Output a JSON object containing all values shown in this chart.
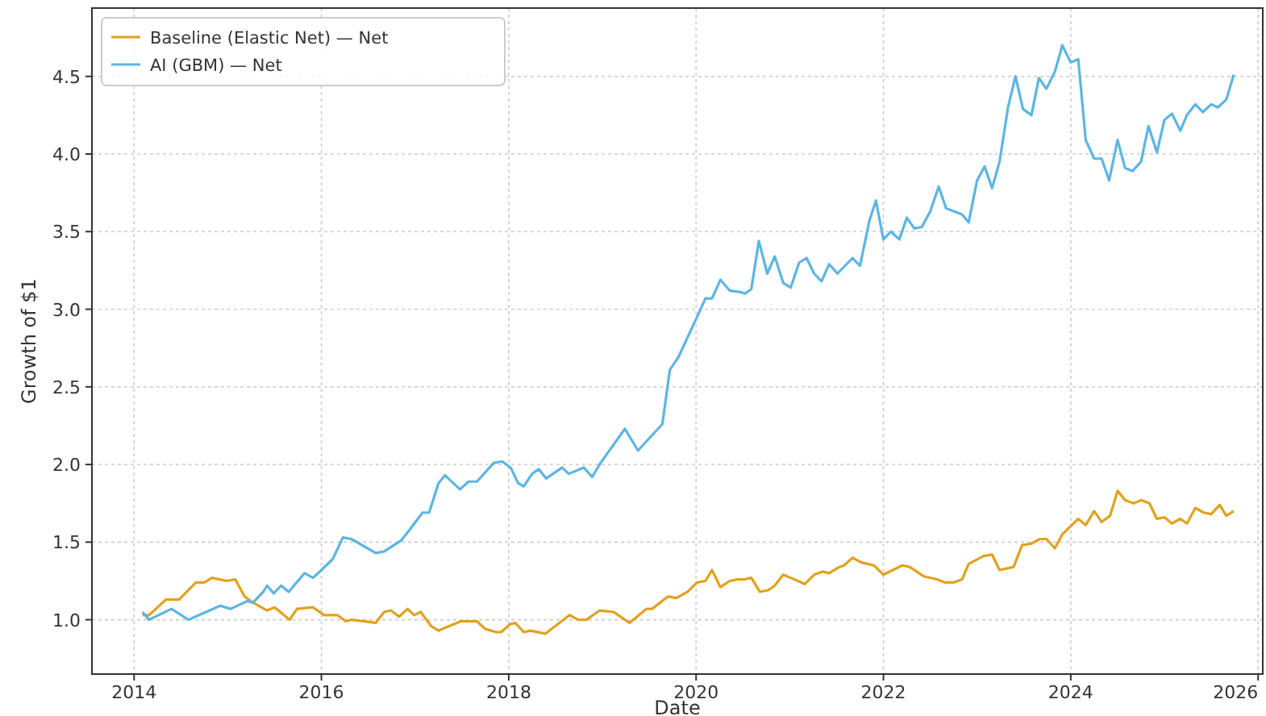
{
  "chart_data": {
    "type": "line",
    "xlabel": "Date",
    "ylabel": "Growth of $1",
    "xlim": [
      2013.55,
      2026.05
    ],
    "ylim": [
      0.65,
      4.94
    ],
    "xticks": [
      2014,
      2016,
      2018,
      2020,
      2022,
      2024,
      2026
    ],
    "yticks": [
      {
        "value": 1,
        "label": "1.0"
      },
      {
        "value": 1.5,
        "label": "1.5"
      },
      {
        "value": 2,
        "label": "2.0"
      },
      {
        "value": 2.5,
        "label": "2.5"
      },
      {
        "value": 3,
        "label": "3.0"
      },
      {
        "value": 3.5,
        "label": "3.5"
      },
      {
        "value": 4,
        "label": "4.0"
      },
      {
        "value": 4.5,
        "label": "4.5"
      }
    ],
    "grid": true,
    "legend": "top left",
    "marker": "none",
    "line_style": "solid",
    "series": [
      {
        "name": "Baseline (Elastic Net) — Net",
        "color": "#e0a21e",
        "x": [
          2014.09,
          2014.16,
          2014.34,
          2014.48,
          2014.66,
          2014.75,
          2014.83,
          2014.99,
          2015.08,
          2015.18,
          2015.27,
          2015.42,
          2015.5,
          2015.66,
          2015.74,
          2015.91,
          2016.03,
          2016.17,
          2016.26,
          2016.32,
          2016.58,
          2016.67,
          2016.74,
          2016.83,
          2016.92,
          2016.99,
          2017.06,
          2017.17,
          2017.25,
          2017.49,
          2017.66,
          2017.75,
          2017.87,
          2017.92,
          2018.01,
          2018.07,
          2018.16,
          2018.23,
          2018.39,
          2018.65,
          2018.74,
          2018.83,
          2018.97,
          2019.12,
          2019.29,
          2019.47,
          2019.53,
          2019.7,
          2019.79,
          2019.91,
          2020.01,
          2020.1,
          2020.17,
          2020.26,
          2020.36,
          2020.45,
          2020.52,
          2020.59,
          2020.68,
          2020.77,
          2020.84,
          2020.93,
          2021.01,
          2021.16,
          2021.26,
          2021.35,
          2021.42,
          2021.53,
          2021.58,
          2021.67,
          2021.76,
          2021.9,
          2022.0,
          2022.1,
          2022.2,
          2022.28,
          2022.43,
          2022.57,
          2022.66,
          2022.75,
          2022.84,
          2022.91,
          2023.07,
          2023.16,
          2023.24,
          2023.39,
          2023.48,
          2023.58,
          2023.67,
          2023.74,
          2023.83,
          2023.91,
          2024.08,
          2024.16,
          2024.25,
          2024.33,
          2024.42,
          2024.5,
          2024.58,
          2024.67,
          2024.75,
          2024.84,
          2024.92,
          2025.0,
          2025.08,
          2025.17,
          2025.24,
          2025.33,
          2025.42,
          2025.5,
          2025.59,
          2025.66,
          2025.74
        ],
        "values": [
          1.03,
          1.03,
          1.13,
          1.13,
          1.24,
          1.24,
          1.27,
          1.25,
          1.26,
          1.15,
          1.11,
          1.06,
          1.08,
          1.0,
          1.07,
          1.08,
          1.03,
          1.03,
          0.99,
          1.0,
          0.98,
          1.05,
          1.06,
          1.02,
          1.07,
          1.03,
          1.05,
          0.96,
          0.93,
          0.99,
          0.99,
          0.94,
          0.92,
          0.92,
          0.97,
          0.98,
          0.92,
          0.93,
          0.91,
          1.03,
          1.0,
          1.0,
          1.06,
          1.05,
          0.98,
          1.07,
          1.07,
          1.15,
          1.14,
          1.18,
          1.24,
          1.25,
          1.32,
          1.21,
          1.25,
          1.26,
          1.26,
          1.27,
          1.18,
          1.19,
          1.22,
          1.29,
          1.27,
          1.23,
          1.29,
          1.31,
          1.3,
          1.34,
          1.35,
          1.4,
          1.37,
          1.35,
          1.29,
          1.32,
          1.35,
          1.34,
          1.28,
          1.26,
          1.24,
          1.24,
          1.26,
          1.36,
          1.41,
          1.42,
          1.32,
          1.34,
          1.48,
          1.49,
          1.52,
          1.52,
          1.46,
          1.55,
          1.65,
          1.61,
          1.7,
          1.63,
          1.67,
          1.83,
          1.77,
          1.75,
          1.77,
          1.75,
          1.65,
          1.66,
          1.62,
          1.65,
          1.62,
          1.72,
          1.69,
          1.68,
          1.74,
          1.67,
          1.7
        ]
      },
      {
        "name": "AI (GBM) — Net",
        "color": "#5db5e2",
        "x": [
          2014.09,
          2014.16,
          2014.4,
          2014.58,
          2014.92,
          2015.03,
          2015.21,
          2015.27,
          2015.38,
          2015.42,
          2015.49,
          2015.57,
          2015.65,
          2015.82,
          2015.91,
          2016.0,
          2016.12,
          2016.23,
          2016.32,
          2016.58,
          2016.67,
          2016.85,
          2016.93,
          2017.08,
          2017.15,
          2017.25,
          2017.32,
          2017.48,
          2017.57,
          2017.66,
          2017.84,
          2017.93,
          2018.02,
          2018.1,
          2018.16,
          2018.25,
          2018.32,
          2018.4,
          2018.57,
          2018.64,
          2018.8,
          2018.89,
          2018.98,
          2019.24,
          2019.38,
          2019.64,
          2019.72,
          2019.81,
          2020.01,
          2020.1,
          2020.17,
          2020.26,
          2020.36,
          2020.48,
          2020.52,
          2020.59,
          2020.67,
          2020.76,
          2020.84,
          2020.93,
          2021.01,
          2021.1,
          2021.18,
          2021.26,
          2021.34,
          2021.42,
          2021.51,
          2021.67,
          2021.75,
          2021.85,
          2021.92,
          2022.0,
          2022.08,
          2022.17,
          2022.25,
          2022.33,
          2022.41,
          2022.5,
          2022.59,
          2022.67,
          2022.84,
          2022.91,
          2023.0,
          2023.08,
          2023.16,
          2023.24,
          2023.33,
          2023.41,
          2023.49,
          2023.58,
          2023.66,
          2023.74,
          2023.83,
          2023.91,
          2024.0,
          2024.08,
          2024.16,
          2024.25,
          2024.33,
          2024.41,
          2024.5,
          2024.58,
          2024.66,
          2024.75,
          2024.83,
          2024.92,
          2025.0,
          2025.08,
          2025.17,
          2025.24,
          2025.33,
          2025.41,
          2025.5,
          2025.57,
          2025.66,
          2025.74
        ],
        "values": [
          1.05,
          1.0,
          1.07,
          1.0,
          1.09,
          1.07,
          1.12,
          1.11,
          1.18,
          1.22,
          1.17,
          1.22,
          1.18,
          1.3,
          1.27,
          1.32,
          1.39,
          1.53,
          1.52,
          1.43,
          1.44,
          1.51,
          1.57,
          1.69,
          1.69,
          1.88,
          1.93,
          1.84,
          1.89,
          1.89,
          2.01,
          2.02,
          1.98,
          1.88,
          1.86,
          1.94,
          1.97,
          1.91,
          1.98,
          1.94,
          1.98,
          1.92,
          2.01,
          2.23,
          2.09,
          2.26,
          2.61,
          2.69,
          2.95,
          3.07,
          3.07,
          3.19,
          3.12,
          3.11,
          3.1,
          3.13,
          3.44,
          3.23,
          3.34,
          3.17,
          3.14,
          3.3,
          3.33,
          3.23,
          3.18,
          3.29,
          3.23,
          3.33,
          3.28,
          3.57,
          3.7,
          3.45,
          3.5,
          3.45,
          3.59,
          3.52,
          3.53,
          3.63,
          3.79,
          3.65,
          3.61,
          3.56,
          3.83,
          3.92,
          3.78,
          3.95,
          4.3,
          4.5,
          4.29,
          4.25,
          4.49,
          4.42,
          4.53,
          4.7,
          4.59,
          4.61,
          4.09,
          3.97,
          3.97,
          3.83,
          4.09,
          3.91,
          3.89,
          3.95,
          4.18,
          4.01,
          4.22,
          4.26,
          4.15,
          4.25,
          4.32,
          4.27,
          4.32,
          4.3,
          4.35,
          4.51
        ]
      }
    ]
  }
}
